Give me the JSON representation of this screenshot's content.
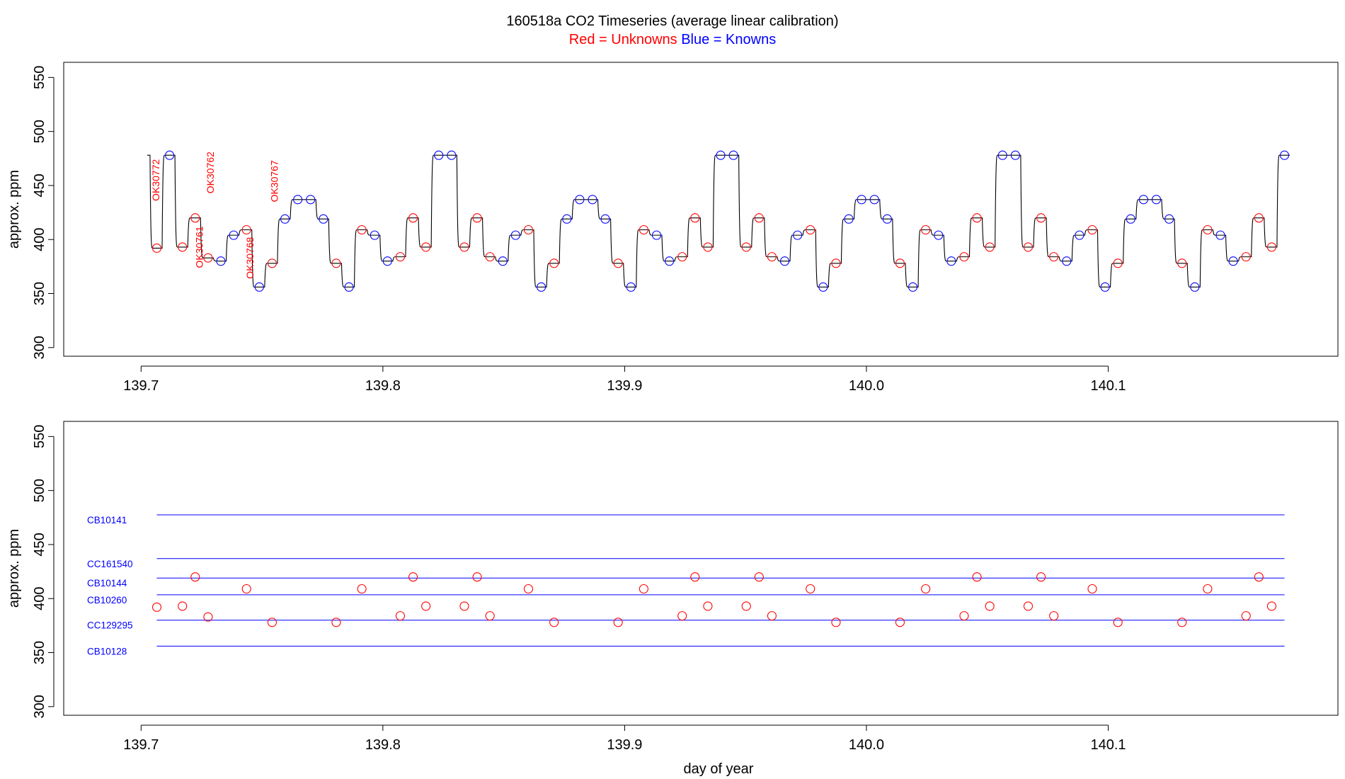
{
  "title": {
    "main": "160518a   CO2 Timeseries (average linear calibration)",
    "legend_red": "Red = Unknowns",
    "legend_blue": "Blue = Knowns"
  },
  "colors": {
    "unknown": "#ff0000",
    "known": "#0000ff",
    "trace": "#000000",
    "axis": "#000000"
  },
  "chart_data": [
    {
      "type": "line",
      "panel": "top",
      "title": "160518a   CO2 Timeseries (average linear calibration)",
      "xlabel": "",
      "ylabel": "approx. ppm",
      "xlim": [
        139.668,
        140.195
      ],
      "ylim": [
        292,
        564
      ],
      "x_ticks": [
        139.7,
        139.8,
        139.9,
        140.0,
        140.1
      ],
      "x_tick_labels": [
        "139.7",
        "139.8",
        "139.9",
        "140.0",
        "140.1"
      ],
      "y_ticks": [
        300,
        350,
        400,
        450,
        500,
        550
      ],
      "y_tick_labels": [
        "300",
        "350",
        "400",
        "450",
        "500",
        "550"
      ],
      "sample_sequence": [
        {
          "x": 139.7065,
          "y": 392,
          "kind": "unknown"
        },
        {
          "x": 139.7118,
          "y": 478,
          "kind": "known"
        },
        {
          "x": 139.7171,
          "y": 393,
          "kind": "unknown"
        },
        {
          "x": 139.7224,
          "y": 420,
          "kind": "unknown"
        },
        {
          "x": 139.7277,
          "y": 383,
          "kind": "unknown"
        },
        {
          "x": 139.733,
          "y": 380,
          "kind": "known"
        },
        {
          "x": 139.7383,
          "y": 404,
          "kind": "known"
        },
        {
          "x": 139.7436,
          "y": 409,
          "kind": "unknown"
        },
        {
          "x": 139.7489,
          "y": 356,
          "kind": "known"
        },
        {
          "x": 139.7542,
          "y": 378,
          "kind": "unknown"
        },
        {
          "x": 139.7595,
          "y": 419,
          "kind": "known"
        },
        {
          "x": 139.7648,
          "y": 437,
          "kind": "known"
        },
        {
          "x": 139.7701,
          "y": 437,
          "kind": "known"
        },
        {
          "x": 139.7754,
          "y": 419,
          "kind": "known"
        },
        {
          "x": 139.7807,
          "y": 378,
          "kind": "unknown"
        },
        {
          "x": 139.786,
          "y": 356,
          "kind": "known"
        },
        {
          "x": 139.7913,
          "y": 409,
          "kind": "unknown"
        },
        {
          "x": 139.7966,
          "y": 404,
          "kind": "known"
        },
        {
          "x": 139.8019,
          "y": 380,
          "kind": "known"
        },
        {
          "x": 139.8072,
          "y": 384,
          "kind": "unknown"
        },
        {
          "x": 139.8125,
          "y": 420,
          "kind": "unknown"
        },
        {
          "x": 139.8178,
          "y": 393,
          "kind": "unknown"
        },
        {
          "x": 139.8231,
          "y": 478,
          "kind": "known"
        },
        {
          "x": 139.8284,
          "y": 478,
          "kind": "known"
        },
        {
          "x": 139.8337,
          "y": 393,
          "kind": "unknown"
        },
        {
          "x": 139.839,
          "y": 420,
          "kind": "unknown"
        },
        {
          "x": 139.8443,
          "y": 384,
          "kind": "unknown"
        },
        {
          "x": 139.8496,
          "y": 380,
          "kind": "known"
        },
        {
          "x": 139.8549,
          "y": 404,
          "kind": "known"
        },
        {
          "x": 139.8602,
          "y": 409,
          "kind": "unknown"
        },
        {
          "x": 139.8655,
          "y": 356,
          "kind": "known"
        },
        {
          "x": 139.8708,
          "y": 378,
          "kind": "unknown"
        },
        {
          "x": 139.8761,
          "y": 419,
          "kind": "known"
        },
        {
          "x": 139.8814,
          "y": 437,
          "kind": "known"
        },
        {
          "x": 139.8867,
          "y": 437,
          "kind": "known"
        },
        {
          "x": 139.892,
          "y": 419,
          "kind": "known"
        },
        {
          "x": 139.8973,
          "y": 378,
          "kind": "unknown"
        },
        {
          "x": 139.9026,
          "y": 356,
          "kind": "known"
        },
        {
          "x": 139.9079,
          "y": 409,
          "kind": "unknown"
        },
        {
          "x": 139.9132,
          "y": 404,
          "kind": "known"
        },
        {
          "x": 139.9185,
          "y": 380,
          "kind": "known"
        },
        {
          "x": 139.9238,
          "y": 384,
          "kind": "unknown"
        },
        {
          "x": 139.9291,
          "y": 420,
          "kind": "unknown"
        },
        {
          "x": 139.9344,
          "y": 393,
          "kind": "unknown"
        },
        {
          "x": 139.9397,
          "y": 478,
          "kind": "known"
        },
        {
          "x": 139.945,
          "y": 478,
          "kind": "known"
        },
        {
          "x": 139.9503,
          "y": 393,
          "kind": "unknown"
        },
        {
          "x": 139.9556,
          "y": 420,
          "kind": "unknown"
        },
        {
          "x": 139.9609,
          "y": 384,
          "kind": "unknown"
        },
        {
          "x": 139.9662,
          "y": 380,
          "kind": "known"
        },
        {
          "x": 139.9715,
          "y": 404,
          "kind": "known"
        },
        {
          "x": 139.9768,
          "y": 409,
          "kind": "unknown"
        },
        {
          "x": 139.9821,
          "y": 356,
          "kind": "known"
        },
        {
          "x": 139.9874,
          "y": 378,
          "kind": "unknown"
        },
        {
          "x": 139.9927,
          "y": 419,
          "kind": "known"
        },
        {
          "x": 139.998,
          "y": 437,
          "kind": "known"
        },
        {
          "x": 140.0033,
          "y": 437,
          "kind": "known"
        },
        {
          "x": 140.0086,
          "y": 419,
          "kind": "known"
        },
        {
          "x": 140.0139,
          "y": 378,
          "kind": "unknown"
        },
        {
          "x": 140.0192,
          "y": 356,
          "kind": "known"
        },
        {
          "x": 140.0245,
          "y": 409,
          "kind": "unknown"
        },
        {
          "x": 140.0298,
          "y": 404,
          "kind": "known"
        },
        {
          "x": 140.0351,
          "y": 380,
          "kind": "known"
        },
        {
          "x": 140.0404,
          "y": 384,
          "kind": "unknown"
        },
        {
          "x": 140.0457,
          "y": 420,
          "kind": "unknown"
        },
        {
          "x": 140.051,
          "y": 393,
          "kind": "unknown"
        },
        {
          "x": 140.0563,
          "y": 478,
          "kind": "known"
        },
        {
          "x": 140.0616,
          "y": 478,
          "kind": "known"
        },
        {
          "x": 140.0669,
          "y": 393,
          "kind": "unknown"
        },
        {
          "x": 140.0722,
          "y": 420,
          "kind": "unknown"
        },
        {
          "x": 140.0775,
          "y": 384,
          "kind": "unknown"
        },
        {
          "x": 140.0828,
          "y": 380,
          "kind": "known"
        },
        {
          "x": 140.0881,
          "y": 404,
          "kind": "known"
        },
        {
          "x": 140.0934,
          "y": 409,
          "kind": "unknown"
        },
        {
          "x": 140.0987,
          "y": 356,
          "kind": "known"
        },
        {
          "x": 140.104,
          "y": 378,
          "kind": "unknown"
        },
        {
          "x": 140.1093,
          "y": 419,
          "kind": "known"
        },
        {
          "x": 140.1146,
          "y": 437,
          "kind": "known"
        },
        {
          "x": 140.1199,
          "y": 437,
          "kind": "known"
        },
        {
          "x": 140.1252,
          "y": 419,
          "kind": "known"
        },
        {
          "x": 140.1305,
          "y": 378,
          "kind": "unknown"
        },
        {
          "x": 140.1358,
          "y": 356,
          "kind": "known"
        },
        {
          "x": 140.1411,
          "y": 409,
          "kind": "unknown"
        },
        {
          "x": 140.1464,
          "y": 404,
          "kind": "known"
        },
        {
          "x": 140.1517,
          "y": 380,
          "kind": "known"
        },
        {
          "x": 140.157,
          "y": 384,
          "kind": "unknown"
        },
        {
          "x": 140.1623,
          "y": 420,
          "kind": "unknown"
        },
        {
          "x": 140.1676,
          "y": 393,
          "kind": "unknown"
        },
        {
          "x": 140.1729,
          "y": 478,
          "kind": "known"
        }
      ],
      "trace_start": {
        "x": 139.7025,
        "y": 478
      },
      "sample_labels": [
        {
          "text": "OK30772",
          "x": 139.7075,
          "y": 455
        },
        {
          "text": "OK30762",
          "x": 139.73,
          "y": 462
        },
        {
          "text": "OK30761",
          "x": 139.7255,
          "y": 393
        },
        {
          "text": "OK30768",
          "x": 139.7465,
          "y": 383
        },
        {
          "text": "OK30767",
          "x": 139.7565,
          "y": 454
        }
      ]
    },
    {
      "type": "scatter",
      "panel": "bottom",
      "xlabel": "day of year",
      "ylabel": "approx. ppm",
      "xlim": [
        139.668,
        140.195
      ],
      "ylim": [
        292,
        564
      ],
      "x_ticks": [
        139.7,
        139.8,
        139.9,
        140.0,
        140.1
      ],
      "x_tick_labels": [
        "139.7",
        "139.8",
        "139.9",
        "140.0",
        "140.1"
      ],
      "y_ticks": [
        300,
        350,
        400,
        450,
        500,
        550
      ],
      "y_tick_labels": [
        "300",
        "350",
        "400",
        "450",
        "500",
        "550"
      ],
      "reference_lines": [
        {
          "name": "CB10141",
          "y": 477.5
        },
        {
          "name": "CC161540",
          "y": 437
        },
        {
          "name": "CB10144",
          "y": 419
        },
        {
          "name": "CB10260",
          "y": 403.5
        },
        {
          "name": "CC129295",
          "y": 380
        },
        {
          "name": "CB10128",
          "y": 356
        }
      ],
      "reference_x_range": [
        139.7065,
        140.1729
      ],
      "note": "unknown points = the 'unknown' entries of the top panel sample_sequence"
    }
  ]
}
